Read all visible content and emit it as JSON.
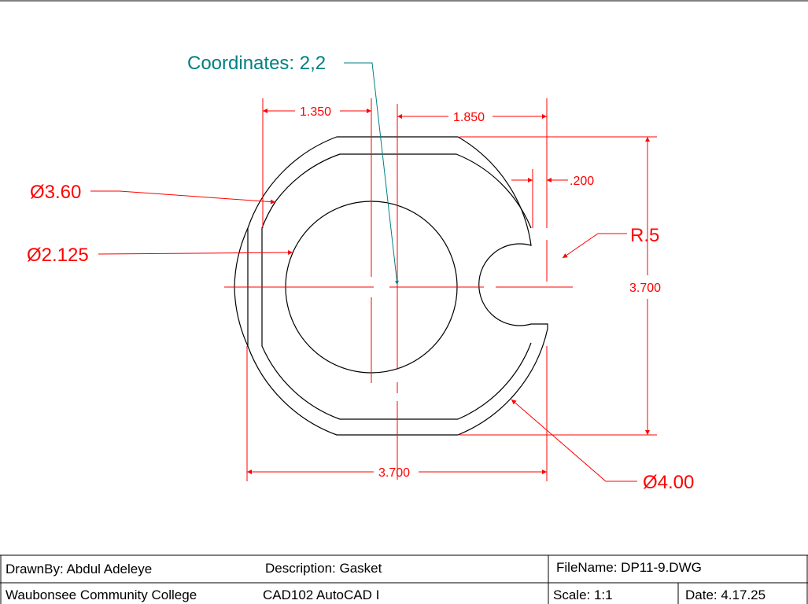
{
  "colors": {
    "geometry": "#000000",
    "dimension": "#ff0000",
    "annotation": "#008080",
    "background": "#ffffff"
  },
  "annotation": {
    "coordinates": "Coordinates: 2,2"
  },
  "dimensions": {
    "left_offset": "1.350",
    "right_offset": "1.850",
    "slot_depth": ".200",
    "outer_arc_dia": "Ø3.60",
    "center_hole_dia": "Ø2.125",
    "slot_radius": "R.5",
    "overall_height": "3.700",
    "overall_width": "3.700",
    "outer_dia": "Ø4.00"
  },
  "title_block": {
    "drawn_by": "DrawnBy: Abdul Adeleye",
    "description": "Description: Gasket",
    "file_name": "FileName: DP11-9.DWG",
    "school": "Waubonsee Community College",
    "course": "CAD102 AutoCAD I",
    "scale": "Scale: 1:1",
    "date": "Date: 4.17.25"
  }
}
